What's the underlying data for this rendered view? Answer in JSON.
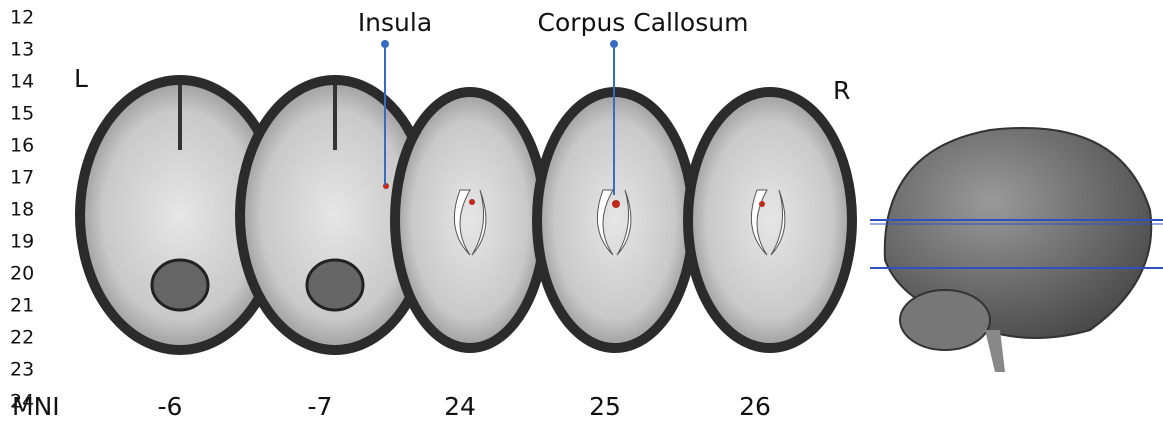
{
  "line_numbers": [
    "12",
    "13",
    "14",
    "15",
    "16",
    "17",
    "18",
    "19",
    "20",
    "21",
    "22",
    "23",
    "24"
  ],
  "annotations": {
    "insula": "Insula",
    "corpus_callosum": "Corpus Callosum"
  },
  "sides": {
    "left": "L",
    "right": "R"
  },
  "slice_row": {
    "label": "MNI",
    "slices": [
      "-6",
      "-7",
      "24",
      "25",
      "26"
    ]
  }
}
